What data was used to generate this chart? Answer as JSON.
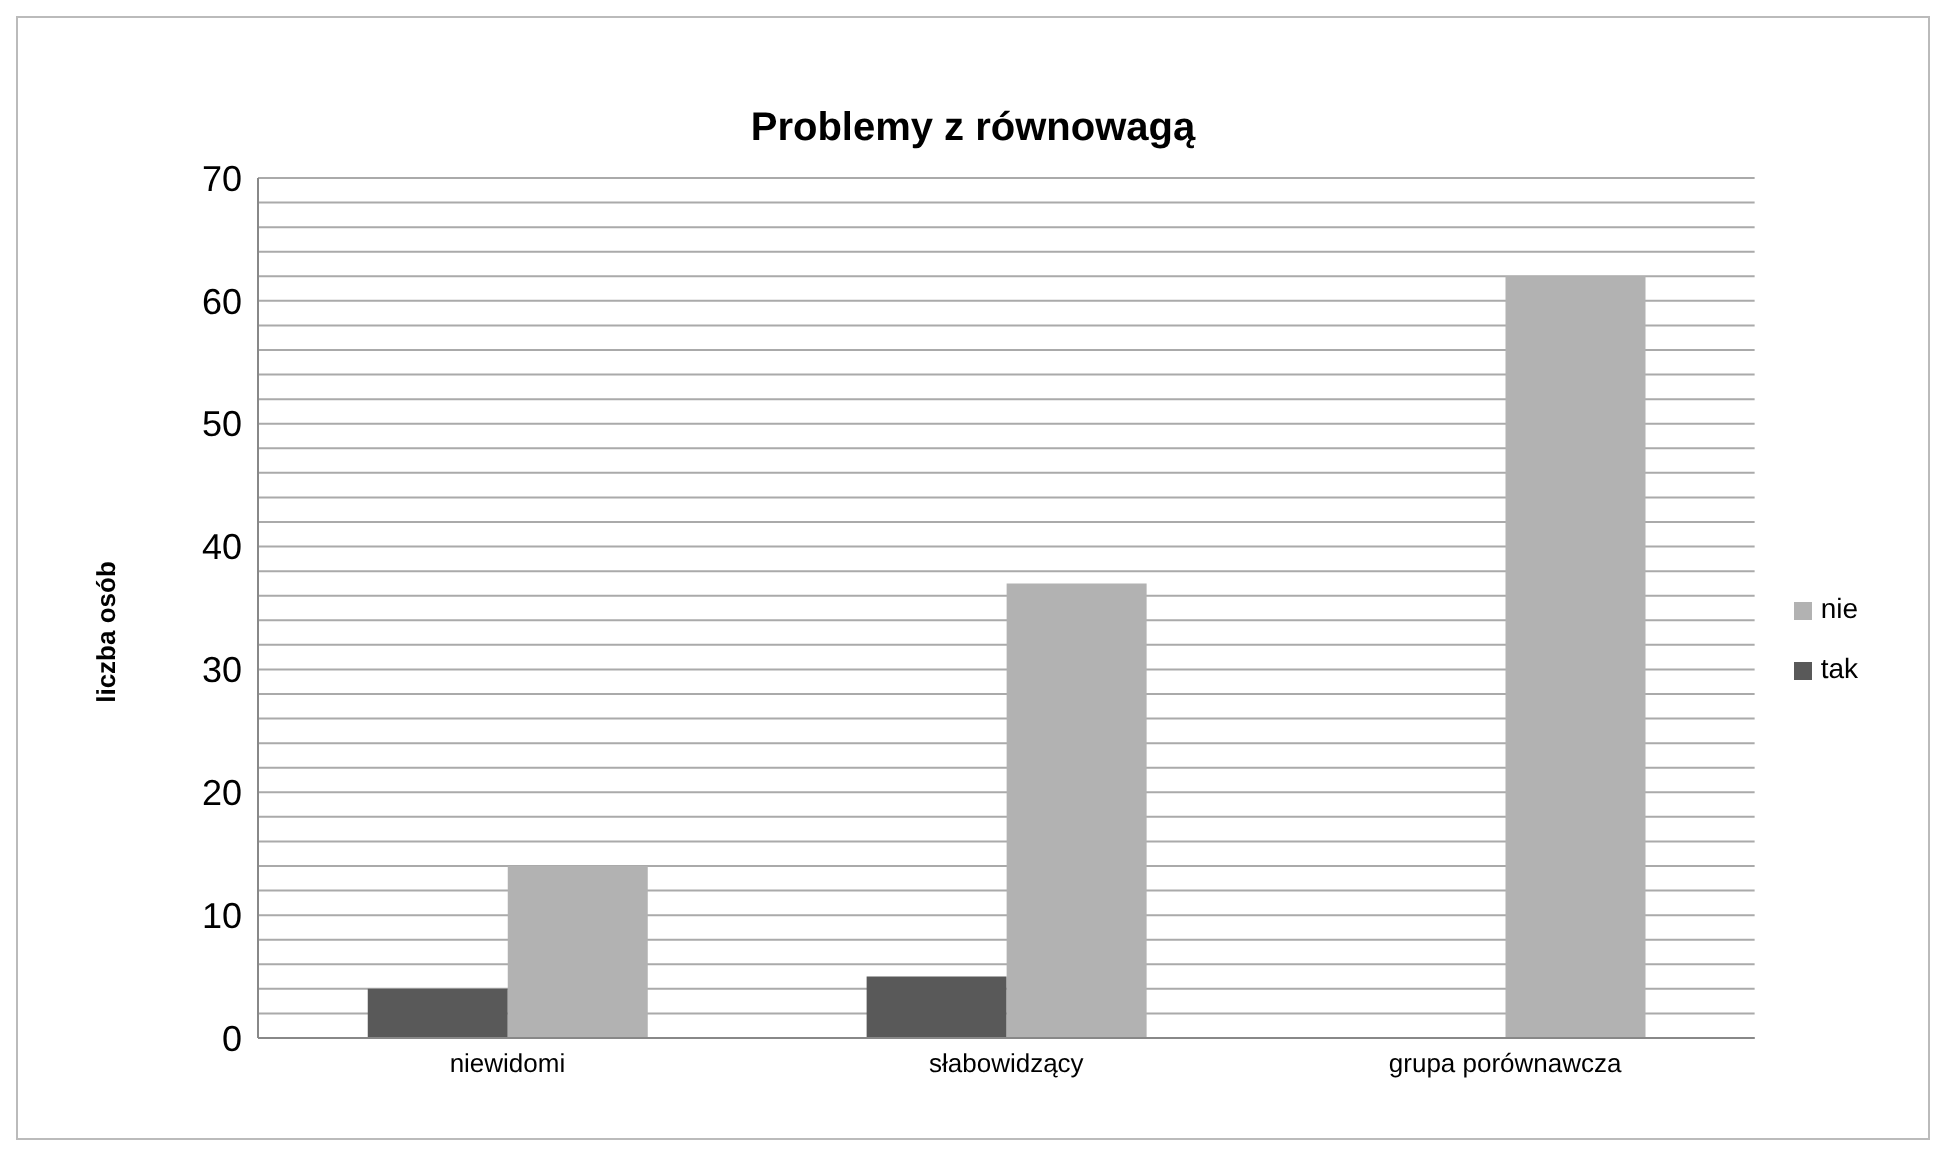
{
  "chart_data": {
    "type": "bar",
    "title": "Problemy z równowagą",
    "ylabel": "liczba osób",
    "categories": [
      "niewidomi",
      "słabowidzący",
      "grupa porównawcza"
    ],
    "series": [
      {
        "name": "tak",
        "color": "#595959",
        "values": [
          4,
          5,
          0
        ]
      },
      {
        "name": "nie",
        "color": "#b2b2b2",
        "values": [
          14,
          37,
          62
        ]
      }
    ],
    "ylim": [
      0,
      70
    ],
    "yticks": [
      0,
      {
        "value": 2,
        "label": null
      },
      {
        "value": 4,
        "label": null
      },
      {
        "value": 6,
        "label": null
      },
      {
        "value": 8,
        "label": null
      },
      10,
      {
        "value": 12,
        "label": null
      },
      {
        "value": 14,
        "label": null
      },
      {
        "value": 16,
        "label": null
      },
      {
        "value": 18,
        "label": null
      },
      20,
      {
        "value": 22,
        "label": null
      },
      {
        "value": 24,
        "label": null
      },
      {
        "value": 26,
        "label": null
      },
      {
        "value": 28,
        "label": null
      },
      30,
      {
        "value": 32,
        "label": null
      },
      {
        "value": 34,
        "label": null
      },
      {
        "value": 36,
        "label": null
      },
      {
        "value": 38,
        "label": null
      },
      40,
      {
        "value": 42,
        "label": null
      },
      {
        "value": 44,
        "label": null
      },
      {
        "value": 46,
        "label": null
      },
      {
        "value": 48,
        "label": null
      },
      50,
      {
        "value": 52,
        "label": null
      },
      {
        "value": 54,
        "label": null
      },
      {
        "value": 56,
        "label": null
      },
      {
        "value": 58,
        "label": null
      },
      60,
      {
        "value": 62,
        "label": null
      },
      {
        "value": 64,
        "label": null
      },
      {
        "value": 66,
        "label": null
      },
      {
        "value": 68,
        "label": null
      },
      70
    ],
    "grid": "y",
    "legend": "right"
  }
}
